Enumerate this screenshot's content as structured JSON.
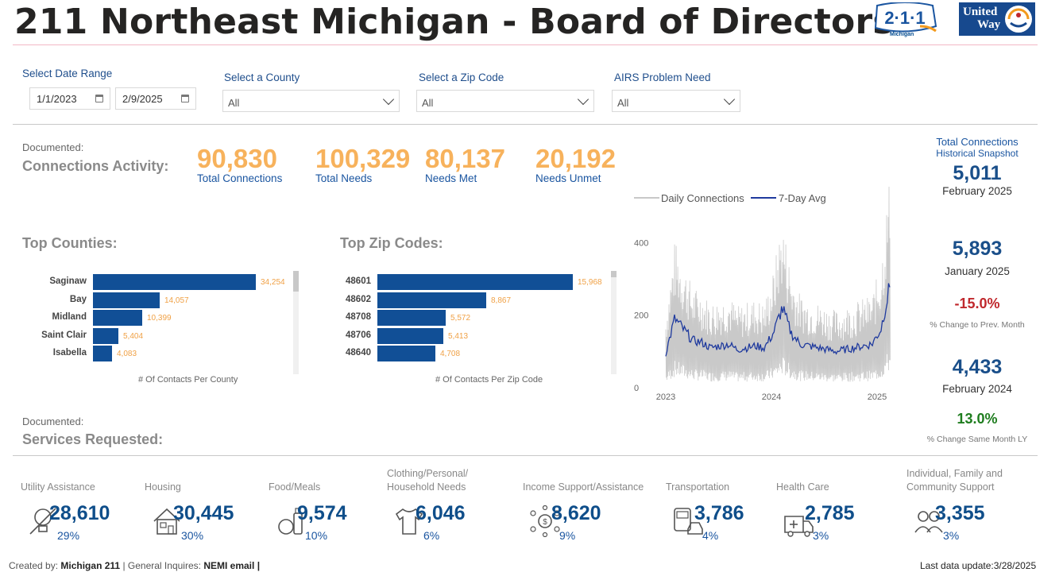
{
  "header": {
    "title": "211 Northeast Michigan - Board of Directors",
    "logo_211_text": "2·1·1",
    "logo_211_sub": "Michigan",
    "logo_uw_line1": "United",
    "logo_uw_line2": "Way"
  },
  "filters": {
    "date_range_label": "Select Date Range",
    "date_start": "1/1/2023",
    "date_end": "2/9/2025",
    "county_label": "Select a County",
    "county_value": "All",
    "zip_label": "Select a Zip Code",
    "zip_value": "All",
    "airs_label": "AIRS Problem Need",
    "airs_value": "All"
  },
  "connections": {
    "documented_label": "Documented:",
    "heading": "Connections Activity:",
    "kpis": [
      {
        "value": "90,830",
        "label": "Total Connections"
      },
      {
        "value": "100,329",
        "label": "Total Needs"
      },
      {
        "value": "80,137",
        "label": "Needs Met"
      },
      {
        "value": "20,192",
        "label": "Needs Unmet"
      }
    ]
  },
  "historical": {
    "head1": "Total Connections",
    "head2": "Historical Snapshot",
    "current_value": "5,011",
    "current_month": "February 2025",
    "prev_value": "5,893",
    "prev_month": "January 2025",
    "prev_change": "-15.0%",
    "prev_change_note": "% Change to Prev. Month",
    "ly_value": "4,433",
    "ly_month": "February 2024",
    "ly_change": "13.0%",
    "ly_change_note": "% Change Same Month LY",
    "colors": {
      "negative": "#c0282d",
      "positive": "#1f7d1f"
    }
  },
  "top_counties": {
    "heading": "Top Counties:",
    "caption": "# Of Contacts Per County",
    "max": 34254,
    "items": [
      {
        "label": "Saginaw",
        "value": 34254,
        "display": "34,254"
      },
      {
        "label": "Bay",
        "value": 14057,
        "display": "14,057"
      },
      {
        "label": "Midland",
        "value": 10399,
        "display": "10,399"
      },
      {
        "label": "Saint Clair",
        "value": 5404,
        "display": "5,404"
      },
      {
        "label": "Isabella",
        "value": 4083,
        "display": "4,083"
      }
    ]
  },
  "top_zips": {
    "heading": "Top Zip Codes:",
    "caption": "# Of Contacts Per Zip Code",
    "max": 15968,
    "items": [
      {
        "label": "48601",
        "value": 15968,
        "display": "15,968"
      },
      {
        "label": "48602",
        "value": 8867,
        "display": "8,867"
      },
      {
        "label": "48708",
        "value": 5572,
        "display": "5,572"
      },
      {
        "label": "48706",
        "value": 5413,
        "display": "5,413"
      },
      {
        "label": "48640",
        "value": 4708,
        "display": "4,708"
      }
    ]
  },
  "chart_data": {
    "type": "line",
    "title": "",
    "xlabel": "",
    "ylabel": "",
    "ylim": [
      0,
      440
    ],
    "yticks": [
      "0",
      "200",
      "400"
    ],
    "xticks": [
      "2023",
      "2024",
      "2025"
    ],
    "legend": "top",
    "series": [
      {
        "name": "Daily Connections",
        "color": "#c8c8c8",
        "description_values": "daily values oscillating roughly 20-300, peaks ~340 early 2023, ~370 early 2024, ~460 early 2025"
      },
      {
        "name": "7-Day Avg",
        "color": "#1f3a9e",
        "values": [
          {
            "x": "2023-01",
            "y": 95
          },
          {
            "x": "2023-02",
            "y": 190
          },
          {
            "x": "2023-03",
            "y": 160
          },
          {
            "x": "2023-04",
            "y": 130
          },
          {
            "x": "2023-05",
            "y": 125
          },
          {
            "x": "2023-06",
            "y": 110
          },
          {
            "x": "2023-07",
            "y": 115
          },
          {
            "x": "2023-08",
            "y": 120
          },
          {
            "x": "2023-09",
            "y": 105
          },
          {
            "x": "2023-10",
            "y": 110
          },
          {
            "x": "2023-11",
            "y": 115
          },
          {
            "x": "2023-12",
            "y": 110
          },
          {
            "x": "2024-01",
            "y": 150
          },
          {
            "x": "2024-02",
            "y": 220
          },
          {
            "x": "2024-03",
            "y": 150
          },
          {
            "x": "2024-04",
            "y": 120
          },
          {
            "x": "2024-05",
            "y": 115
          },
          {
            "x": "2024-06",
            "y": 110
          },
          {
            "x": "2024-07",
            "y": 105
          },
          {
            "x": "2024-08",
            "y": 100
          },
          {
            "x": "2024-09",
            "y": 105
          },
          {
            "x": "2024-10",
            "y": 110
          },
          {
            "x": "2024-11",
            "y": 115
          },
          {
            "x": "2024-12",
            "y": 120
          },
          {
            "x": "2025-01",
            "y": 160
          },
          {
            "x": "2025-02",
            "y": 280
          }
        ]
      }
    ]
  },
  "services": {
    "documented_label": "Documented:",
    "heading": "Services Requested:",
    "items": [
      {
        "category": "Utility Assistance",
        "value": "28,610",
        "pct": "29%",
        "icon": "lightbulb-icon"
      },
      {
        "category": "Housing",
        "value": "30,445",
        "pct": "30%",
        "icon": "house-icon"
      },
      {
        "category": "Food/Meals",
        "value": "9,574",
        "pct": "10%",
        "icon": "food-icon"
      },
      {
        "category": "Clothing/Personal/\nHousehold Needs",
        "value": "6,046",
        "pct": "6%",
        "icon": "shirt-icon"
      },
      {
        "category": "Income Support/Assistance",
        "value": "8,620",
        "pct": "9%",
        "icon": "money-network-icon"
      },
      {
        "category": "Transportation",
        "value": "3,786",
        "pct": "4%",
        "icon": "bus-car-icon"
      },
      {
        "category": "Health Care",
        "value": "2,785",
        "pct": "3%",
        "icon": "ambulance-icon"
      },
      {
        "category": "Individual, Family and\nCommunity Support",
        "value": "3,355",
        "pct": "3%",
        "icon": "people-icon"
      }
    ]
  },
  "footer": {
    "created_by_label": "Created by:",
    "created_by": "Michigan 211",
    "sep1": "|",
    "inquiries_label": "General Inquires:",
    "inquiries": "NEMI email",
    "sep2": "|",
    "last_update_label": "Last data update:",
    "last_update": "3/28/2025"
  }
}
